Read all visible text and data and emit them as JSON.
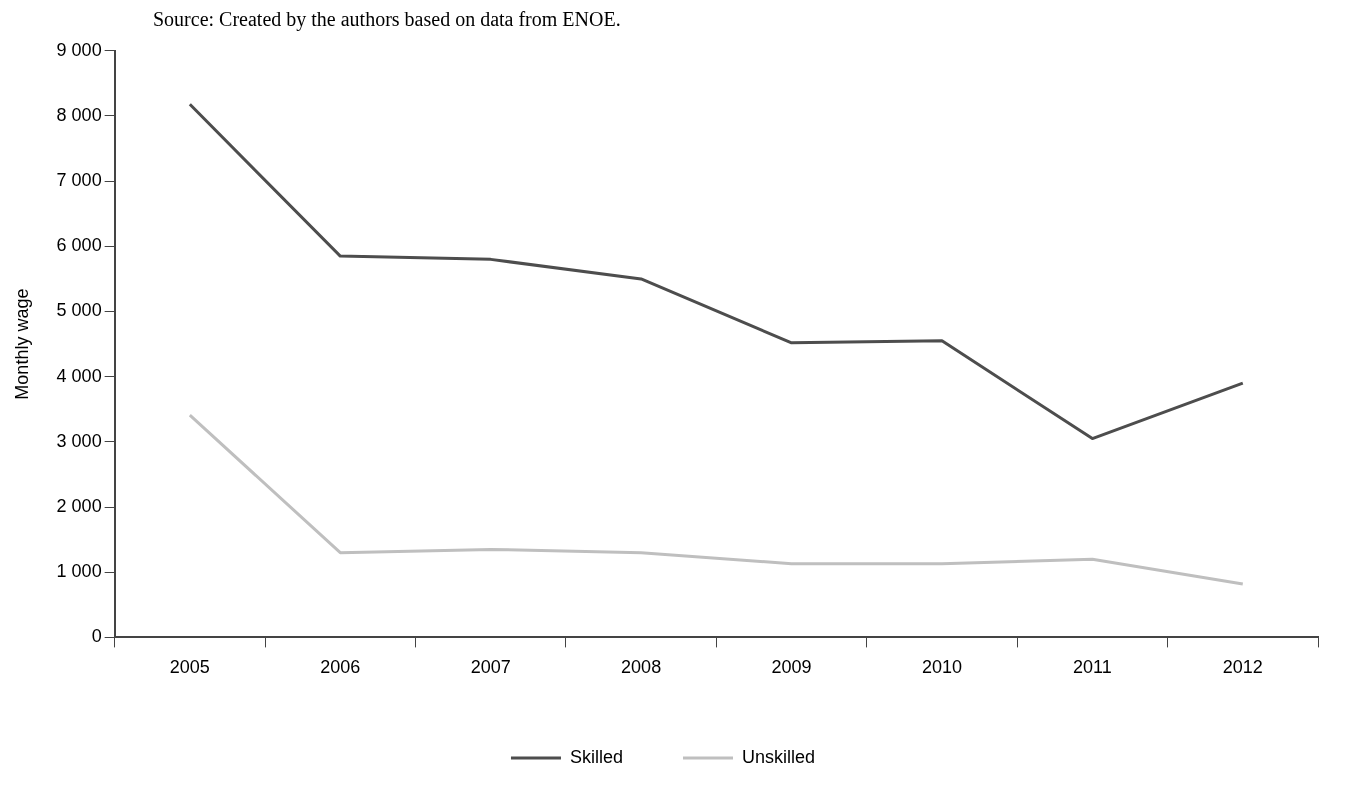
{
  "chart_data": {
    "type": "line",
    "ylabel": "Monthly wage",
    "annotations": [
      "Source: Created by the authors based on data from ENOE."
    ],
    "categories": [
      "2005",
      "2006",
      "2007",
      "2008",
      "2009",
      "2010",
      "2011",
      "2012"
    ],
    "series": [
      {
        "name": "Skilled",
        "color": "#4d4d4d",
        "values": [
          8180,
          5850,
          5800,
          5500,
          4520,
          4550,
          3050,
          3900
        ]
      },
      {
        "name": "Unskilled",
        "color": "#bfbfbf",
        "values": [
          3410,
          1300,
          1350,
          1300,
          1130,
          1130,
          1200,
          820
        ]
      }
    ],
    "ylim": [
      0,
      9000
    ],
    "yticks": [
      {
        "value": 0,
        "label": "0"
      },
      {
        "value": 1000,
        "label": "1 000"
      },
      {
        "value": 2000,
        "label": "2 000"
      },
      {
        "value": 3000,
        "label": "3 000"
      },
      {
        "value": 4000,
        "label": "4 000"
      },
      {
        "value": 5000,
        "label": "5 000"
      },
      {
        "value": 6000,
        "label": "6 000"
      },
      {
        "value": 7000,
        "label": "7 000"
      },
      {
        "value": 8000,
        "label": "8 000"
      },
      {
        "value": 9000,
        "label": "9 000"
      }
    ],
    "grid": false,
    "legend": "bottom",
    "marker": "none",
    "line_style": "solid"
  }
}
